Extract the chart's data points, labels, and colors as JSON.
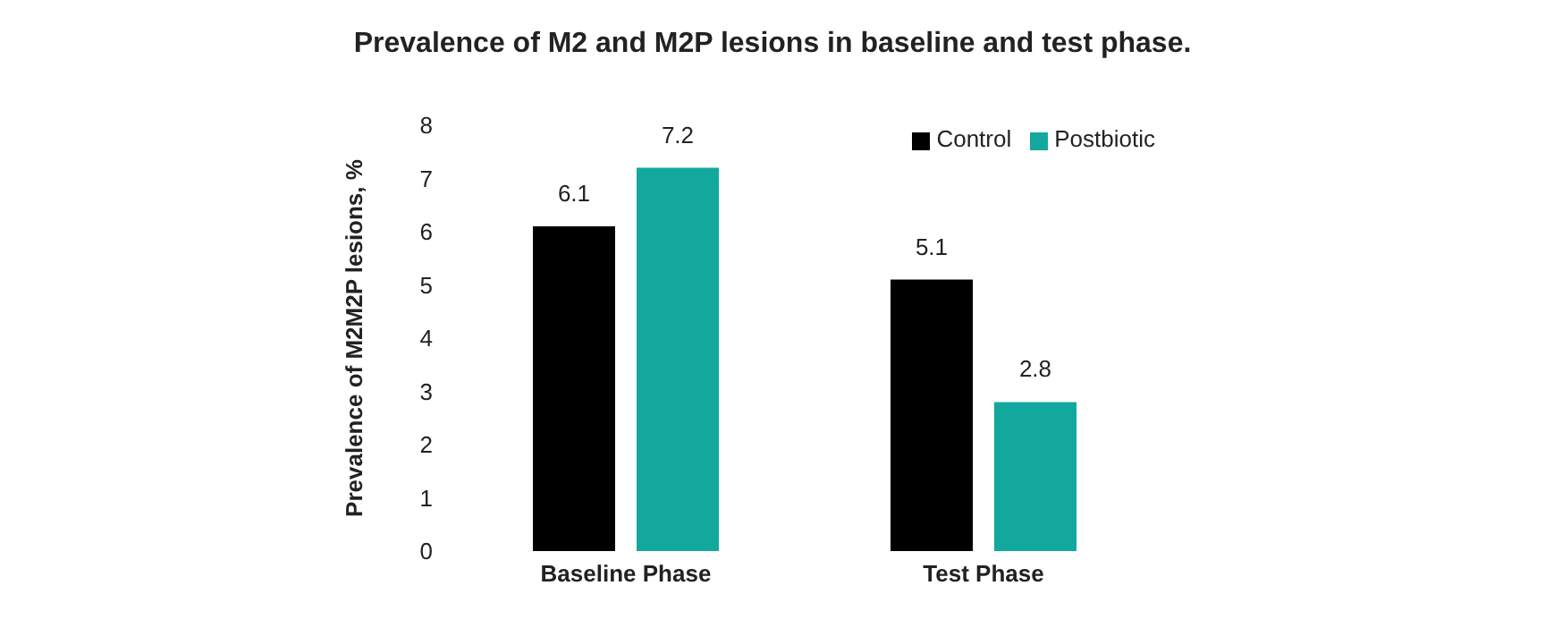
{
  "chart_data": {
    "type": "bar",
    "title": "Prevalence of M2 and M2P lesions in baseline and test phase.",
    "ylabel": "Prevalence of M2M2P lesions, %",
    "categories": [
      "Baseline Phase",
      "Test Phase"
    ],
    "series": [
      {
        "name": "Control",
        "color": "#000000",
        "values": [
          6.1,
          5.1
        ]
      },
      {
        "name": "Postbiotic",
        "color": "#13a89e",
        "values": [
          7.2,
          2.8
        ]
      }
    ],
    "ylim": [
      0,
      8
    ],
    "yticks": [
      0,
      1,
      2,
      3,
      4,
      5,
      6,
      7,
      8
    ],
    "grid": false,
    "legend": "top right",
    "data_labels": true
  }
}
